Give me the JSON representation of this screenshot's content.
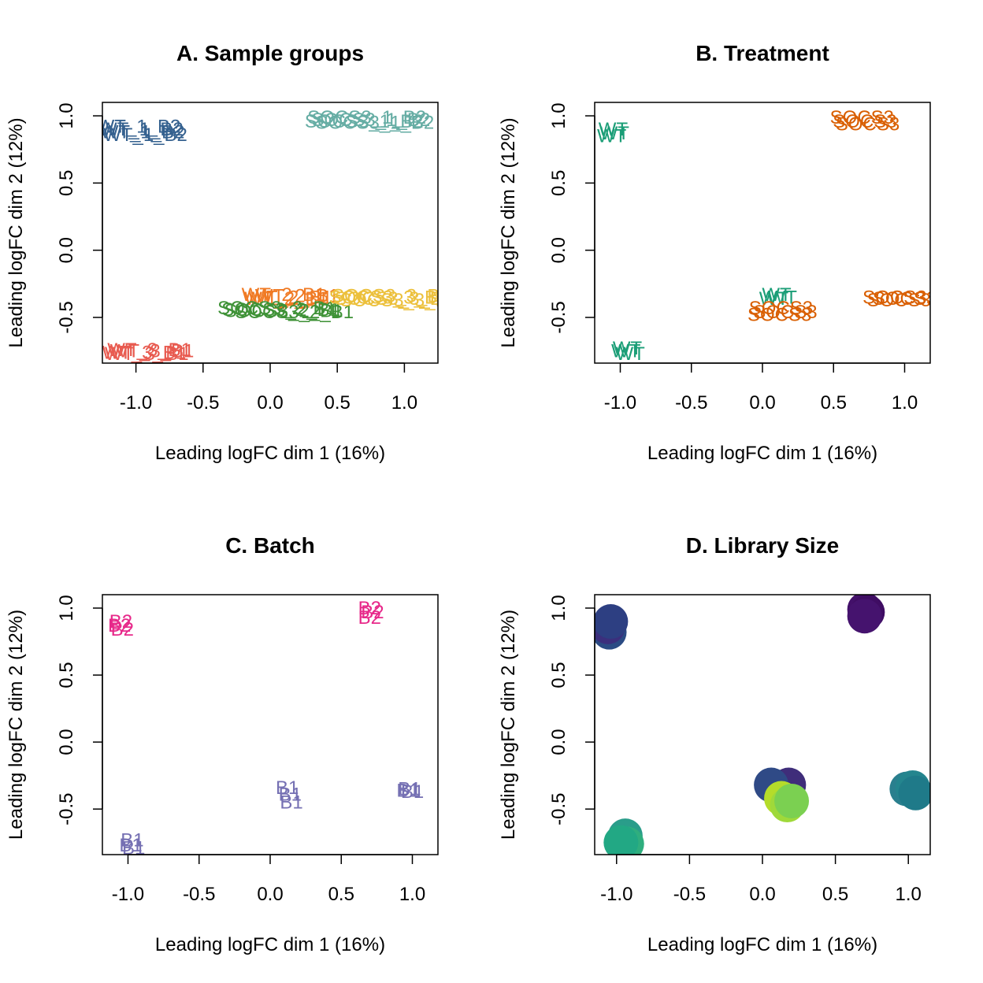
{
  "chart_data": [
    {
      "type": "scatter",
      "title": "A. Sample groups",
      "xlabel": "Leading logFC dim 1 (16%)",
      "ylabel": "Leading logFC dim 2 (12%)",
      "xlim": [
        -1.25,
        1.25
      ],
      "ylim": [
        -0.84,
        1.1
      ],
      "xticks": [
        -1.0,
        -0.5,
        0.0,
        0.5,
        1.0
      ],
      "xtick_labels": [
        "-1.0",
        "-0.5",
        "0.0",
        "0.5",
        "1.0"
      ],
      "yticks": [
        -0.5,
        0.0,
        0.5,
        1.0
      ],
      "ytick_labels": [
        "-0.5",
        "0.0",
        "0.5",
        "1.0"
      ],
      "grid": false,
      "marker": "text",
      "series": [
        {
          "color": "#35618f",
          "points": [
            {
              "x": -0.98,
              "y": 0.92,
              "label": "WT_1_B2"
            },
            {
              "x": -0.95,
              "y": 0.88,
              "label": "WT_1_B2"
            },
            {
              "x": -0.93,
              "y": 0.86,
              "label": "WT_1_B2"
            },
            {
              "x": -0.96,
              "y": 0.9,
              "label": "WT_1_B2"
            }
          ]
        },
        {
          "color": "#66ada4",
          "points": [
            {
              "x": 0.72,
              "y": 0.99,
              "label": "SOCS3_1_B2"
            },
            {
              "x": 0.75,
              "y": 0.97,
              "label": "SOCS3_1_B2"
            },
            {
              "x": 0.78,
              "y": 0.95,
              "label": "SOCS3_1_B2"
            },
            {
              "x": 0.7,
              "y": 0.96,
              "label": "SOCS3_1_B2"
            }
          ]
        },
        {
          "color": "#e85b50",
          "points": [
            {
              "x": -0.9,
              "y": -0.74,
              "label": "WT_3_B1"
            },
            {
              "x": -0.92,
              "y": -0.77,
              "label": "WT_3_B1"
            },
            {
              "x": -0.88,
              "y": -0.75,
              "label": "WT_3_B1"
            },
            {
              "x": -0.94,
              "y": -0.76,
              "label": "WT_3_B1"
            }
          ]
        },
        {
          "color": "#f07a24",
          "points": [
            {
              "x": 0.1,
              "y": -0.33,
              "label": "WT_2_B1"
            },
            {
              "x": 0.15,
              "y": -0.35,
              "label": "WT_2_B1"
            },
            {
              "x": 0.2,
              "y": -0.34,
              "label": "WT_2_B1"
            },
            {
              "x": 0.12,
              "y": -0.36,
              "label": "WT_2_B1"
            }
          ]
        },
        {
          "color": "#3f9237",
          "points": [
            {
              "x": 0.05,
              "y": -0.43,
              "label": "SOCS3_2_B1"
            },
            {
              "x": 0.1,
              "y": -0.45,
              "label": "SOCS3_2_B1"
            },
            {
              "x": 0.18,
              "y": -0.46,
              "label": "SOCS3_2_B1"
            },
            {
              "x": 0.08,
              "y": -0.44,
              "label": "SOCS3_2_B1"
            }
          ]
        },
        {
          "color": "#ecc03c",
          "points": [
            {
              "x": 0.88,
              "y": -0.35,
              "label": "SOCS3_3_B1"
            },
            {
              "x": 0.92,
              "y": -0.36,
              "label": "SOCS3_3_B1"
            },
            {
              "x": 0.96,
              "y": -0.37,
              "label": "SOCS3_3_B1"
            },
            {
              "x": 0.9,
              "y": -0.34,
              "label": "SOCS3_3_B1"
            }
          ]
        }
      ]
    },
    {
      "type": "scatter",
      "title": "B. Treatment",
      "xlabel": "Leading logFC dim 1 (16%)",
      "ylabel": "Leading logFC dim 2 (12%)",
      "xlim": [
        -1.18,
        1.18
      ],
      "ylim": [
        -0.84,
        1.1
      ],
      "xticks": [
        -1.0,
        -0.5,
        0.0,
        0.5,
        1.0
      ],
      "xtick_labels": [
        "-1.0",
        "-0.5",
        "0.0",
        "0.5",
        "1.0"
      ],
      "yticks": [
        -0.5,
        0.0,
        0.5,
        1.0
      ],
      "ytick_labels": [
        "-0.5",
        "0.0",
        "0.5",
        "1.0"
      ],
      "grid": false,
      "marker": "text",
      "series": [
        {
          "name": "WT",
          "color": "#1b9e77",
          "points": [
            {
              "x": -1.05,
              "y": 0.9,
              "label": "WT"
            },
            {
              "x": -1.04,
              "y": 0.87,
              "label": "WT"
            },
            {
              "x": -1.06,
              "y": 0.85,
              "label": "WT"
            },
            {
              "x": -0.95,
              "y": -0.73,
              "label": "WT"
            },
            {
              "x": -0.93,
              "y": -0.77,
              "label": "WT"
            },
            {
              "x": -0.96,
              "y": -0.75,
              "label": "WT"
            },
            {
              "x": 0.1,
              "y": -0.33,
              "label": "WT"
            },
            {
              "x": 0.14,
              "y": -0.35,
              "label": "WT"
            },
            {
              "x": 0.08,
              "y": -0.36,
              "label": "WT"
            }
          ]
        },
        {
          "name": "SOCS3",
          "color": "#d95f02",
          "points": [
            {
              "x": 0.7,
              "y": 0.99,
              "label": "SOCS3"
            },
            {
              "x": 0.72,
              "y": 0.96,
              "label": "SOCS3"
            },
            {
              "x": 0.74,
              "y": 0.94,
              "label": "SOCS3"
            },
            {
              "x": 0.13,
              "y": -0.43,
              "label": "SOCS3"
            },
            {
              "x": 0.16,
              "y": -0.46,
              "label": "SOCS3"
            },
            {
              "x": 0.12,
              "y": -0.48,
              "label": "SOCS3"
            },
            {
              "x": 0.93,
              "y": -0.35,
              "label": "SOCS3"
            },
            {
              "x": 0.96,
              "y": -0.37,
              "label": "SOCS3"
            },
            {
              "x": 1.0,
              "y": -0.36,
              "label": "SOCS3"
            }
          ]
        }
      ]
    },
    {
      "type": "scatter",
      "title": "C. Batch",
      "xlabel": "Leading logFC dim 1 (16%)",
      "ylabel": "Leading logFC dim 2 (12%)",
      "xlim": [
        -1.18,
        1.18
      ],
      "ylim": [
        -0.84,
        1.1
      ],
      "xticks": [
        -1.0,
        -0.5,
        0.0,
        0.5,
        1.0
      ],
      "xtick_labels": [
        "-1.0",
        "-0.5",
        "0.0",
        "0.5",
        "1.0"
      ],
      "yticks": [
        -0.5,
        0.0,
        0.5,
        1.0
      ],
      "ytick_labels": [
        "-0.5",
        "0.0",
        "0.5",
        "1.0"
      ],
      "grid": false,
      "marker": "text",
      "series": [
        {
          "name": "B2",
          "color": "#e7298a",
          "points": [
            {
              "x": -1.05,
              "y": 0.9,
              "label": "B2"
            },
            {
              "x": -1.06,
              "y": 0.87,
              "label": "B2"
            },
            {
              "x": -1.04,
              "y": 0.84,
              "label": "B2"
            },
            {
              "x": 0.7,
              "y": 1.0,
              "label": "B2"
            },
            {
              "x": 0.72,
              "y": 0.97,
              "label": "B2"
            },
            {
              "x": 0.7,
              "y": 0.93,
              "label": "B2"
            }
          ]
        },
        {
          "name": "B1",
          "color": "#7570b3",
          "points": [
            {
              "x": -0.97,
              "y": -0.73,
              "label": "B1"
            },
            {
              "x": -0.98,
              "y": -0.77,
              "label": "B1"
            },
            {
              "x": -0.96,
              "y": -0.79,
              "label": "B1"
            },
            {
              "x": 0.12,
              "y": -0.34,
              "label": "B1"
            },
            {
              "x": 0.14,
              "y": -0.39,
              "label": "B1"
            },
            {
              "x": 0.15,
              "y": -0.45,
              "label": "B1"
            },
            {
              "x": 0.98,
              "y": -0.35,
              "label": "B1"
            },
            {
              "x": 1.0,
              "y": -0.37,
              "label": "B1"
            },
            {
              "x": 0.97,
              "y": -0.36,
              "label": "B1"
            }
          ]
        }
      ]
    },
    {
      "type": "scatter",
      "title": "D. Library Size",
      "xlabel": "Leading logFC dim 1 (16%)",
      "ylabel": "Leading logFC dim 2 (12%)",
      "xlim": [
        -1.15,
        1.15
      ],
      "ylim": [
        -0.84,
        1.1
      ],
      "xticks": [
        -1.0,
        -0.5,
        0.0,
        0.5,
        1.0
      ],
      "xtick_labels": [
        "-1.0",
        "-0.5",
        "0.0",
        "0.5",
        "1.0"
      ],
      "yticks": [
        -0.5,
        0.0,
        0.5,
        1.0
      ],
      "ytick_labels": [
        "-0.5",
        "0.0",
        "0.5",
        "1.0"
      ],
      "grid": false,
      "marker": "circle",
      "points": [
        {
          "x": -1.05,
          "y": 0.82,
          "color": "#2b4b84"
        },
        {
          "x": -1.06,
          "y": 0.86,
          "color": "#3b2f7d"
        },
        {
          "x": -1.04,
          "y": 0.9,
          "color": "#2d3f82"
        },
        {
          "x": 0.7,
          "y": 0.99,
          "color": "#43106a"
        },
        {
          "x": 0.72,
          "y": 0.97,
          "color": "#3f0d63"
        },
        {
          "x": 0.7,
          "y": 0.94,
          "color": "#45136e"
        },
        {
          "x": 0.18,
          "y": -0.32,
          "color": "#3f2d7a"
        },
        {
          "x": 0.06,
          "y": -0.32,
          "color": "#2f4a86"
        },
        {
          "x": 0.13,
          "y": -0.42,
          "color": "#b5dc2a"
        },
        {
          "x": 0.17,
          "y": -0.47,
          "color": "#9fd93a"
        },
        {
          "x": 0.2,
          "y": -0.44,
          "color": "#7bd051"
        },
        {
          "x": 0.99,
          "y": -0.35,
          "color": "#2a7f8e"
        },
        {
          "x": 1.03,
          "y": -0.34,
          "color": "#24858e"
        },
        {
          "x": 1.05,
          "y": -0.38,
          "color": "#1f7a89"
        },
        {
          "x": -0.94,
          "y": -0.7,
          "color": "#2a9d8a"
        },
        {
          "x": -0.93,
          "y": -0.76,
          "color": "#2fae7e"
        },
        {
          "x": -0.97,
          "y": -0.75,
          "color": "#22a884"
        }
      ]
    }
  ]
}
